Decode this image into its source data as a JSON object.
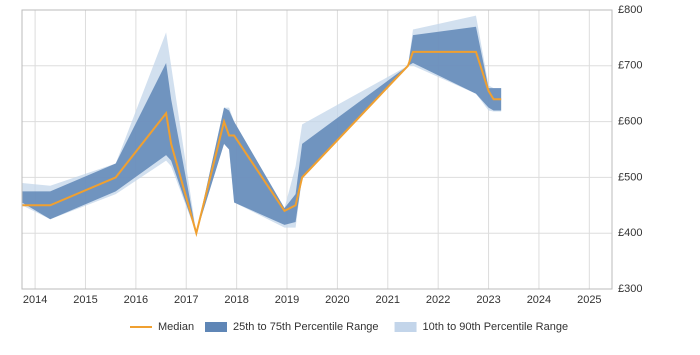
{
  "chart_data": {
    "type": "band-line",
    "x": [
      2013.74,
      2014.3,
      2015.6,
      2016.6,
      2016.7,
      2017.2,
      2017.75,
      2017.85,
      2017.95,
      2018.95,
      2019.17,
      2019.3,
      2021.4,
      2021.5,
      2022.75,
      2023.0,
      2023.1,
      2023.25
    ],
    "series": [
      {
        "name": "Median",
        "color": "#f0a030",
        "values": [
          450,
          450,
          500,
          615,
          560,
          400,
          600,
          575,
          575,
          440,
          450,
          500,
          700,
          725,
          725,
          655,
          640,
          640
        ]
      }
    ],
    "bands": [
      {
        "name": "10th to 90th Percentile Range",
        "color": "#c3d5ea",
        "lower": [
          450,
          425,
          470,
          530,
          520,
          400,
          560,
          550,
          455,
          410,
          410,
          500,
          700,
          700,
          650,
          620,
          618,
          618
        ],
        "upper": [
          490,
          485,
          525,
          760,
          700,
          400,
          625,
          625,
          600,
          445,
          520,
          595,
          700,
          765,
          790,
          665,
          660,
          660
        ]
      },
      {
        "name": "25th to 75th Percentile Range",
        "color": "#5f86b6",
        "lower": [
          455,
          425,
          475,
          540,
          530,
          400,
          560,
          550,
          455,
          415,
          420,
          500,
          700,
          705,
          650,
          625,
          620,
          620
        ],
        "upper": [
          475,
          475,
          525,
          705,
          640,
          400,
          625,
          620,
          600,
          445,
          470,
          560,
          700,
          755,
          770,
          660,
          660,
          660
        ]
      }
    ],
    "xlim": [
      2013.74,
      2025.45
    ],
    "xticks": [
      2014,
      2015,
      2016,
      2017,
      2018,
      2019,
      2020,
      2021,
      2022,
      2023,
      2024,
      2025
    ],
    "ylim": [
      300,
      800
    ],
    "yticks": [
      {
        "value": 300,
        "label": "£300"
      },
      {
        "value": 400,
        "label": "£400"
      },
      {
        "value": 500,
        "label": "£500"
      },
      {
        "value": 600,
        "label": "£600"
      },
      {
        "value": 700,
        "label": "£700"
      },
      {
        "value": 800,
        "label": "£800"
      }
    ],
    "grid": true
  }
}
